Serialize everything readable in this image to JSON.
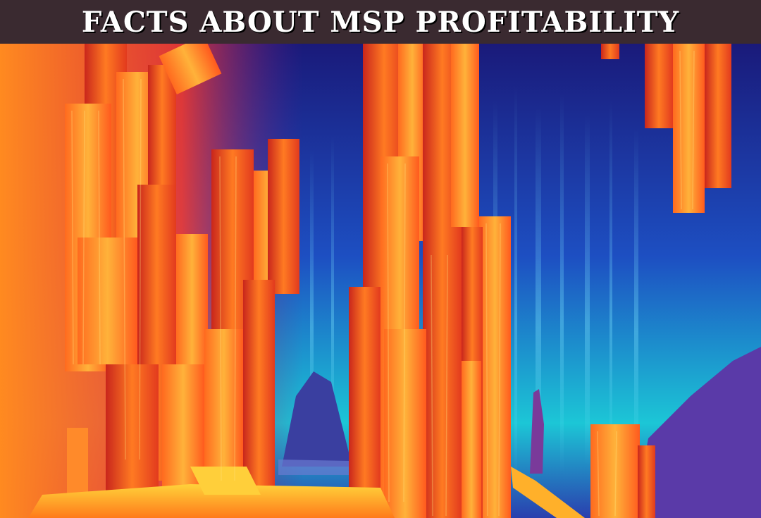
{
  "banner": {
    "title": "FACTS ABOUT MSP PROFITABILITY"
  },
  "illustration": {
    "alt": "Surreal painting of orange wooden pillars against a glowing blue backdrop",
    "colors": {
      "sky_top": "#1b1f8a",
      "sky_glow": "#1fd3d8",
      "pillar_light": "#ff9a2e",
      "pillar_dark": "#d2311f",
      "warm_glow": "#ff5a1a"
    }
  }
}
